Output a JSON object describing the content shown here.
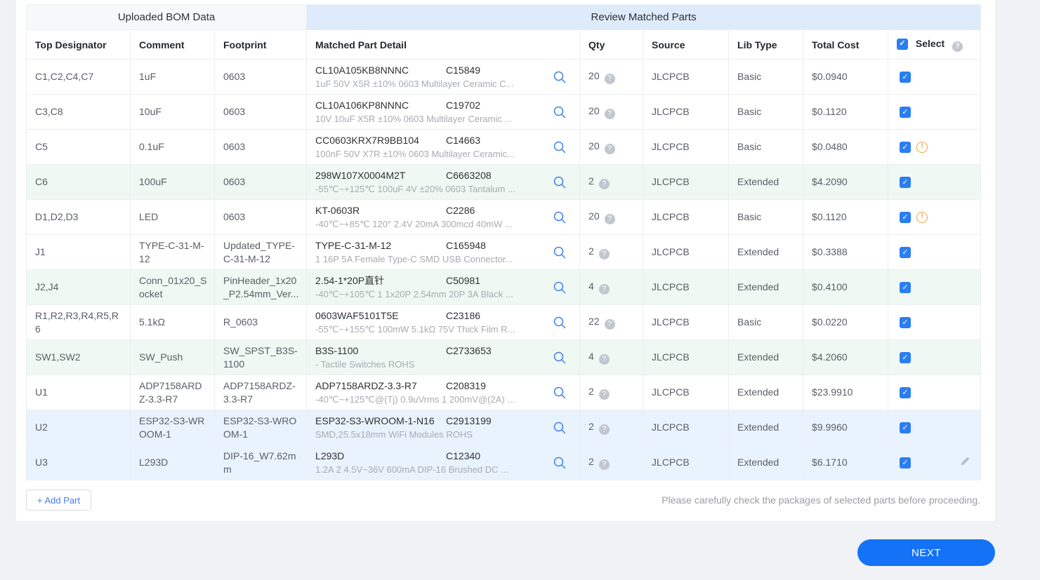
{
  "colors": {
    "accent_blue": "#1372f6",
    "checkbox_blue": "#2a7df2",
    "warning_orange": "#f7a23b",
    "row_highlight_green": "#eff8f2",
    "row_highlight_blue": "#e9f3fd",
    "uploaded_header_bg": "#f7f8fa",
    "review_header_bg": "#ddebfa"
  },
  "icons": {
    "checkbox_check": "✓",
    "help": "?",
    "warning": "!"
  },
  "table": {
    "group_headers": {
      "left": "Uploaded BOM Data",
      "right": "Review Matched Parts"
    },
    "columns": [
      {
        "label": "Top Designator"
      },
      {
        "label": "Comment"
      },
      {
        "label": "Footprint"
      },
      {
        "label": "Matched Part Detail"
      },
      {
        "label": "Qty"
      },
      {
        "label": "Source"
      },
      {
        "label": "Lib Type"
      },
      {
        "label": "Total Cost"
      },
      {
        "label": "Select"
      }
    ],
    "rows": [
      {
        "designator": "C1,C2,C4,C7",
        "comment": "1uF",
        "footprint": "0603",
        "part_number": "CL10A105KB8NNNC",
        "part_code": "C15849",
        "part_desc": "1uF 50V X5R ±10% 0603 Multilayer Ceramic C...",
        "qty": "20",
        "source": "JLCPCB",
        "lib_type": "Basic",
        "total_cost": "$0.0940",
        "selected": true,
        "warning": false,
        "editable": false,
        "highlight": "none"
      },
      {
        "designator": "C3,C8",
        "comment": "10uF",
        "footprint": "0603",
        "part_number": "CL10A106KP8NNNC",
        "part_code": "C19702",
        "part_desc": "10V 10uF X5R ±10% 0603 Multilayer Ceramic ...",
        "qty": "20",
        "source": "JLCPCB",
        "lib_type": "Basic",
        "total_cost": "$0.1120",
        "selected": true,
        "warning": false,
        "editable": false,
        "highlight": "none"
      },
      {
        "designator": "C5",
        "comment": "0.1uF",
        "footprint": "0603",
        "part_number": "CC0603KRX7R9BB104",
        "part_code": "C14663",
        "part_desc": "100nF 50V X7R ±10% 0603 Multilayer Ceramic...",
        "qty": "20",
        "source": "JLCPCB",
        "lib_type": "Basic",
        "total_cost": "$0.0480",
        "selected": true,
        "warning": true,
        "editable": false,
        "highlight": "none"
      },
      {
        "designator": "C6",
        "comment": "100uF",
        "footprint": "0603",
        "part_number": "298W107X0004M2T",
        "part_code": "C6663208",
        "part_desc": "-55℃~+125℃ 100uF 4V ±20% 0603 Tantalum ...",
        "qty": "2",
        "source": "JLCPCB",
        "lib_type": "Extended",
        "total_cost": "$4.2090",
        "selected": true,
        "warning": false,
        "editable": false,
        "highlight": "green"
      },
      {
        "designator": "D1,D2,D3",
        "comment": "LED",
        "footprint": "0603",
        "part_number": "KT-0603R",
        "part_code": "C2286",
        "part_desc": "-40℃~+85℃ 120° 2.4V 20mA 300mcd 40mW ...",
        "qty": "20",
        "source": "JLCPCB",
        "lib_type": "Basic",
        "total_cost": "$0.1120",
        "selected": true,
        "warning": true,
        "editable": false,
        "highlight": "none"
      },
      {
        "designator": "J1",
        "comment": "TYPE-C-31-M-12",
        "footprint": "Updated_TYPE-C-31-M-12",
        "part_number": "TYPE-C-31-M-12",
        "part_code": "C165948",
        "part_desc": "1 16P 5A Female Type-C SMD USB Connector...",
        "qty": "2",
        "source": "JLCPCB",
        "lib_type": "Extended",
        "total_cost": "$0.3388",
        "selected": true,
        "warning": false,
        "editable": false,
        "highlight": "none"
      },
      {
        "designator": "J2,J4",
        "comment": "Conn_01x20_Socket",
        "footprint": "PinHeader_1x20_P2.54mm_Ver...",
        "part_number": "2.54-1*20P直针",
        "part_code": "C50981",
        "part_desc": "-40℃~+105℃ 1 1x20P 2.54mm 20P 3A Black ...",
        "qty": "4",
        "source": "JLCPCB",
        "lib_type": "Extended",
        "total_cost": "$0.4100",
        "selected": true,
        "warning": false,
        "editable": false,
        "highlight": "green"
      },
      {
        "designator": "R1,R2,R3,R4,R5,R6",
        "comment": "5.1kΩ",
        "footprint": "R_0603",
        "part_number": "0603WAF5101T5E",
        "part_code": "C23186",
        "part_desc": "-55℃~+155℃ 100mW 5.1kΩ 75V Thick Film R...",
        "qty": "22",
        "source": "JLCPCB",
        "lib_type": "Basic",
        "total_cost": "$0.0220",
        "selected": true,
        "warning": false,
        "editable": false,
        "highlight": "none"
      },
      {
        "designator": "SW1,SW2",
        "comment": "SW_Push",
        "footprint": "SW_SPST_B3S-1100",
        "part_number": "B3S-1100",
        "part_code": "C2733653",
        "part_desc": "- Tactile Switches ROHS",
        "qty": "4",
        "source": "JLCPCB",
        "lib_type": "Extended",
        "total_cost": "$4.2060",
        "selected": true,
        "warning": false,
        "editable": false,
        "highlight": "green"
      },
      {
        "designator": "U1",
        "comment": "ADP7158ARDZ-3.3-R7",
        "footprint": "ADP7158ARDZ-3.3-R7",
        "part_number": "ADP7158ARDZ-3.3-R7",
        "part_code": "C208319",
        "part_desc": "-40℃~+125℃@(Tj) 0.9uVrms 1 200mV@(2A) ...",
        "qty": "2",
        "source": "JLCPCB",
        "lib_type": "Extended",
        "total_cost": "$23.9910",
        "selected": true,
        "warning": false,
        "editable": false,
        "highlight": "none"
      },
      {
        "designator": "U2",
        "comment": "ESP32-S3-WROOM-1",
        "footprint": "ESP32-S3-WROOM-1",
        "part_number": "ESP32-S3-WROOM-1-N16",
        "part_code": "C2913199",
        "part_desc": "SMD,25.5x18mm WiFi Modules ROHS",
        "qty": "2",
        "source": "JLCPCB",
        "lib_type": "Extended",
        "total_cost": "$9.9960",
        "selected": true,
        "warning": false,
        "editable": false,
        "highlight": "blue"
      },
      {
        "designator": "U3",
        "comment": "L293D",
        "footprint": "DIP-16_W7.62mm",
        "part_number": "L293D",
        "part_code": "C12340",
        "part_desc": "1.2A 2 4.5V~36V 600mA DIP-16 Brushed DC ...",
        "qty": "2",
        "source": "JLCPCB",
        "lib_type": "Extended",
        "total_cost": "$6.1710",
        "selected": true,
        "warning": false,
        "editable": true,
        "highlight": "blue"
      }
    ]
  },
  "footer": {
    "add_part_label": "+ Add Part",
    "note": "Please carefully check the packages of selected parts before proceeding.",
    "next_label": "NEXT"
  }
}
